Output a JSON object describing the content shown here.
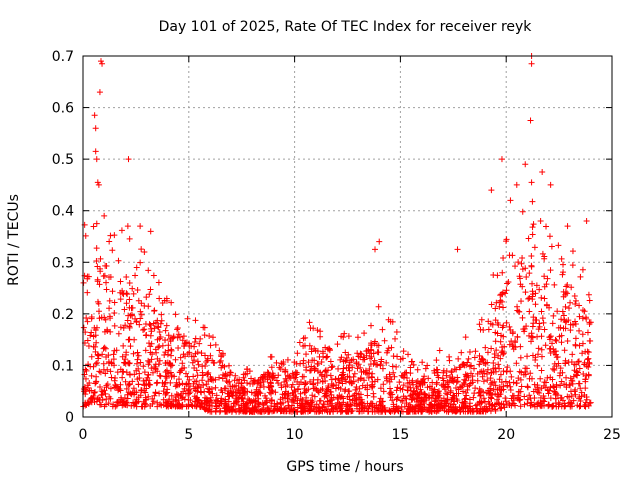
{
  "chart_data": {
    "type": "scatter",
    "title": "Day 101 of 2025, Rate Of TEC Index for receiver reyk",
    "xlabel": "GPS time / hours",
    "ylabel": "ROTI / TECUs",
    "xlim": [
      0,
      25
    ],
    "ylim": [
      0,
      0.7
    ],
    "xticks": [
      0,
      5,
      10,
      15,
      20,
      25
    ],
    "yticks": [
      0,
      0.1,
      0.2,
      0.3,
      0.4,
      0.5,
      0.6,
      0.7
    ],
    "xtick_labels": [
      "0",
      "5",
      "10",
      "15",
      "20",
      "25"
    ],
    "ytick_labels": [
      "0",
      "0.1",
      "0.2",
      "0.3",
      "0.4",
      "0.5",
      "0.6",
      "0.7"
    ],
    "grid": true,
    "marker": "+",
    "color": "#ff0000",
    "envelope_note": "Dense ROTI point cloud; envelope [hour, lower ROTI, typical upper ROTI] estimated from figure",
    "envelope": [
      [
        0.0,
        0.02,
        0.28
      ],
      [
        0.5,
        0.03,
        0.32
      ],
      [
        1.0,
        0.02,
        0.3
      ],
      [
        1.5,
        0.02,
        0.27
      ],
      [
        2.0,
        0.02,
        0.28
      ],
      [
        2.5,
        0.02,
        0.26
      ],
      [
        3.0,
        0.02,
        0.24
      ],
      [
        3.5,
        0.02,
        0.2
      ],
      [
        4.0,
        0.02,
        0.18
      ],
      [
        4.5,
        0.02,
        0.17
      ],
      [
        5.0,
        0.02,
        0.15
      ],
      [
        5.5,
        0.02,
        0.14
      ],
      [
        6.0,
        0.01,
        0.12
      ],
      [
        6.5,
        0.01,
        0.11
      ],
      [
        7.0,
        0.01,
        0.09
      ],
      [
        7.5,
        0.01,
        0.07
      ],
      [
        8.0,
        0.01,
        0.07
      ],
      [
        8.5,
        0.01,
        0.08
      ],
      [
        9.0,
        0.01,
        0.09
      ],
      [
        9.5,
        0.01,
        0.08
      ],
      [
        10.0,
        0.01,
        0.09
      ],
      [
        10.5,
        0.01,
        0.13
      ],
      [
        11.0,
        0.01,
        0.15
      ],
      [
        11.5,
        0.01,
        0.12
      ],
      [
        12.0,
        0.01,
        0.11
      ],
      [
        12.5,
        0.01,
        0.13
      ],
      [
        13.0,
        0.01,
        0.12
      ],
      [
        13.5,
        0.01,
        0.14
      ],
      [
        14.0,
        0.01,
        0.16
      ],
      [
        14.5,
        0.01,
        0.15
      ],
      [
        15.0,
        0.01,
        0.12
      ],
      [
        15.5,
        0.01,
        0.09
      ],
      [
        16.0,
        0.01,
        0.08
      ],
      [
        16.5,
        0.01,
        0.09
      ],
      [
        17.0,
        0.01,
        0.1
      ],
      [
        17.5,
        0.01,
        0.09
      ],
      [
        18.0,
        0.01,
        0.11
      ],
      [
        18.5,
        0.01,
        0.14
      ],
      [
        19.0,
        0.01,
        0.17
      ],
      [
        19.5,
        0.01,
        0.22
      ],
      [
        20.0,
        0.02,
        0.26
      ],
      [
        20.5,
        0.02,
        0.3
      ],
      [
        21.0,
        0.02,
        0.32
      ],
      [
        21.5,
        0.02,
        0.3
      ],
      [
        22.0,
        0.02,
        0.28
      ],
      [
        22.5,
        0.02,
        0.26
      ],
      [
        23.0,
        0.02,
        0.24
      ],
      [
        23.5,
        0.02,
        0.24
      ],
      [
        24.0,
        0.02,
        0.22
      ]
    ],
    "outliers": [
      [
        0.85,
        0.69
      ],
      [
        0.9,
        0.685
      ],
      [
        0.8,
        0.63
      ],
      [
        0.55,
        0.585
      ],
      [
        0.6,
        0.56
      ],
      [
        0.6,
        0.515
      ],
      [
        0.65,
        0.5
      ],
      [
        0.7,
        0.455
      ],
      [
        0.75,
        0.45
      ],
      [
        2.15,
        0.5
      ],
      [
        21.2,
        0.7
      ],
      [
        21.2,
        0.685
      ],
      [
        21.15,
        0.575
      ],
      [
        19.8,
        0.5
      ],
      [
        20.9,
        0.49
      ],
      [
        21.7,
        0.475
      ],
      [
        21.2,
        0.455
      ],
      [
        20.5,
        0.45
      ],
      [
        22.1,
        0.45
      ],
      [
        14.0,
        0.34
      ],
      [
        13.8,
        0.325
      ],
      [
        17.7,
        0.325
      ],
      [
        23.8,
        0.38
      ],
      [
        2.7,
        0.37
      ],
      [
        3.2,
        0.36
      ],
      [
        2.9,
        0.32
      ],
      [
        1.0,
        0.39
      ],
      [
        22.9,
        0.37
      ],
      [
        19.3,
        0.44
      ],
      [
        20.2,
        0.42
      ]
    ]
  }
}
